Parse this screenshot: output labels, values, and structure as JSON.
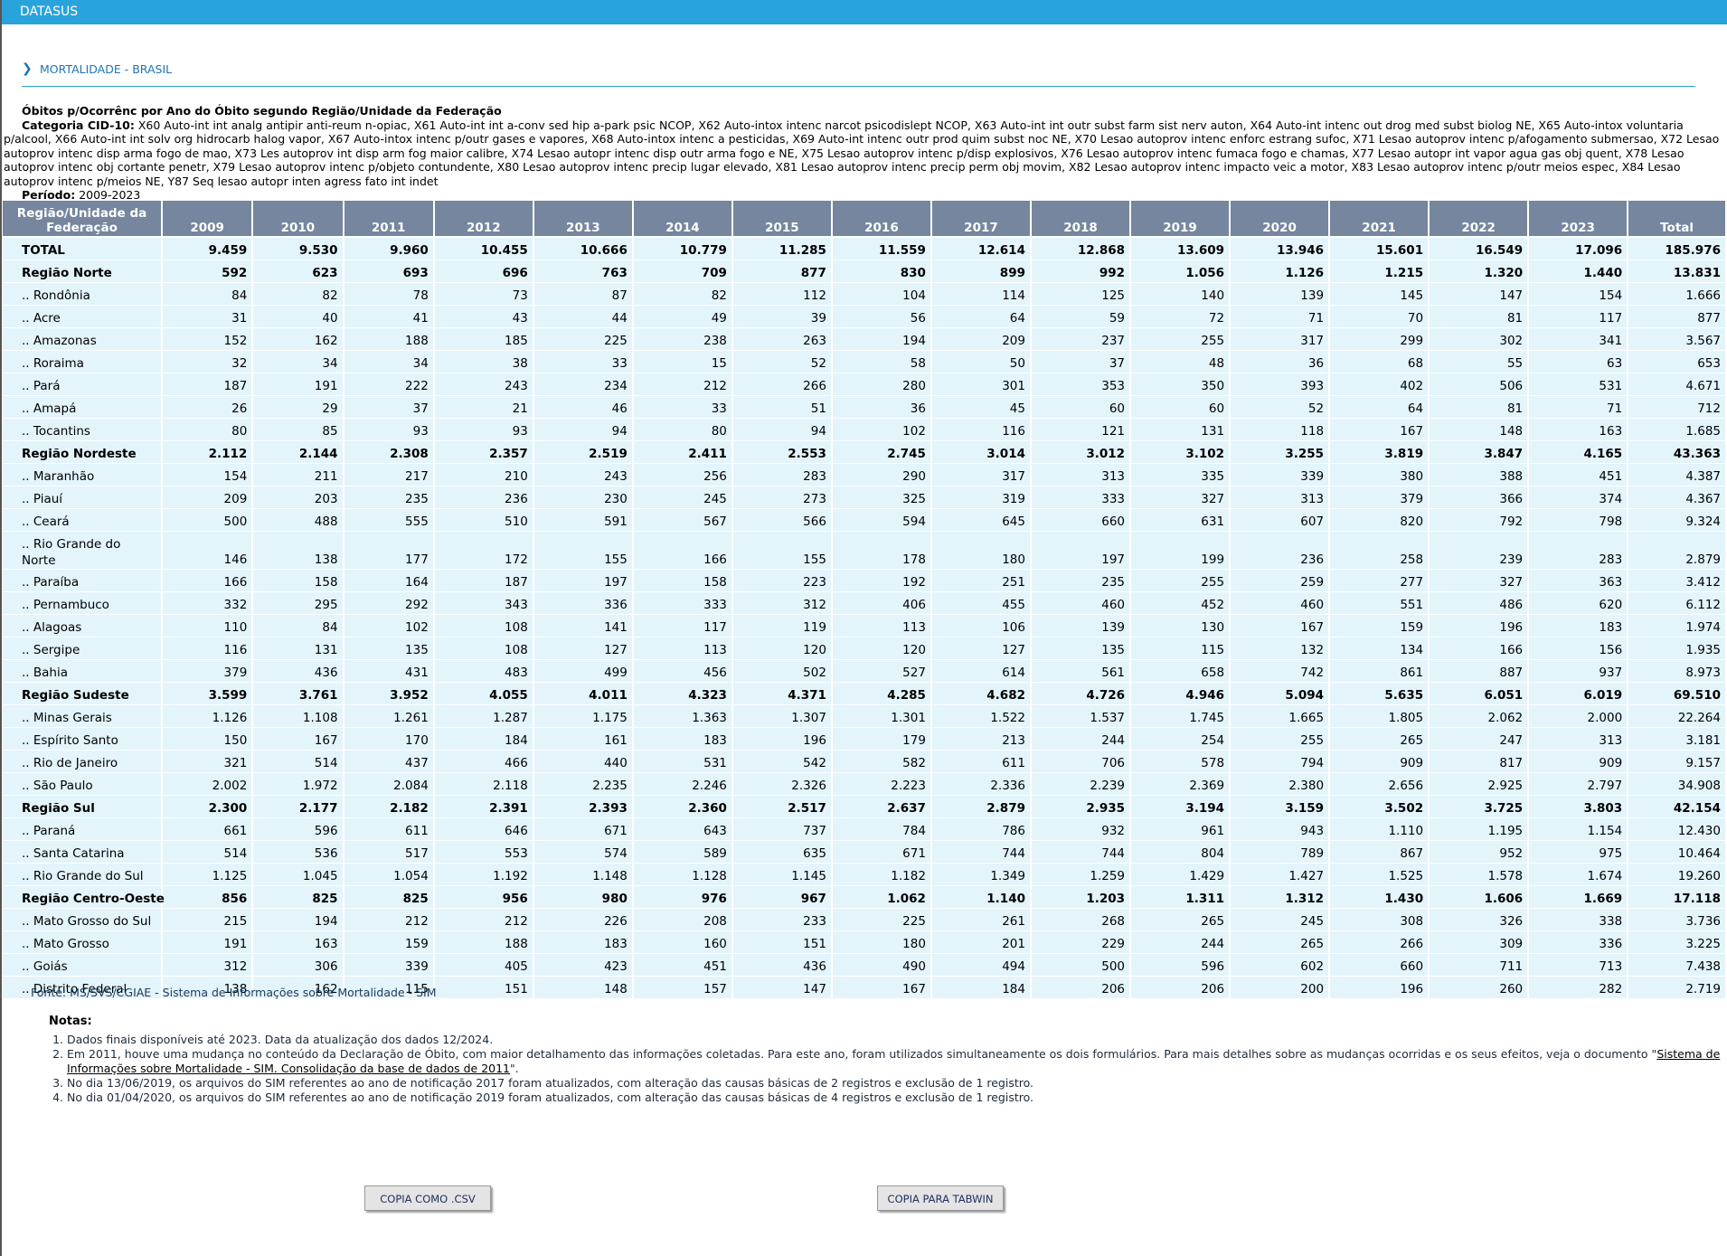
{
  "app": {
    "brand": "DATASUS"
  },
  "section": {
    "title": "MORTALIDADE - BRASIL"
  },
  "header": {
    "title": "Óbitos p/Ocorrênc por Ano do Óbito segundo Região/Unidade da Federação",
    "categoria_label": "Categoria CID-10:",
    "categoria_value": "X60 Auto-int int analg antipir anti-reum n-opiac, X61 Auto-int int a-conv sed hip a-park psic NCOP, X62 Auto-intox intenc narcot psicodislept NCOP, X63 Auto-int int outr subst farm sist nerv auton, X64 Auto-int intenc out drog med subst biolog NE, X65 Auto-intox voluntaria p/alcool, X66 Auto-int int solv org hidrocarb halog vapor, X67 Auto-intox intenc p/outr gases e vapores, X68 Auto-intox intenc a pesticidas, X69 Auto-int intenc outr prod quim subst noc NE, X70 Lesao autoprov intenc enforc estrang sufoc, X71 Lesao autoprov intenc p/afogamento submersao, X72 Lesao autoprov intenc disp arma fogo de mao, X73 Les autoprov int disp arm fog maior calibre, X74 Lesao autopr intenc disp outr arma fogo e NE, X75 Lesao autoprov intenc p/disp explosivos, X76 Lesao autoprov intenc fumaca fogo e chamas, X77 Lesao autopr int vapor agua gas obj quent, X78 Lesao autoprov intenc obj cortante penetr, X79 Lesao autoprov intenc p/objeto contundente, X80 Lesao autoprov intenc precip lugar elevado, X81 Lesao autoprov intenc precip perm obj movim, X82 Lesao autoprov intenc impacto veic a motor, X83 Lesao autoprov intenc p/outr meios espec, X84 Lesao autoprov intenc p/meios NE, Y87 Seq lesao autopr inten agress fato int indet",
    "periodo_label": "Período:",
    "periodo_value": "2009-2023"
  },
  "table": {
    "columns": [
      "Região/Unidade da Federação",
      "2009",
      "2010",
      "2011",
      "2012",
      "2013",
      "2014",
      "2015",
      "2016",
      "2017",
      "2018",
      "2019",
      "2020",
      "2021",
      "2022",
      "2023",
      "Total"
    ],
    "rows": [
      {
        "name": "TOTAL",
        "bold": true,
        "values": [
          "9.459",
          "9.530",
          "9.960",
          "10.455",
          "10.666",
          "10.779",
          "11.285",
          "11.559",
          "12.614",
          "12.868",
          "13.609",
          "13.946",
          "15.601",
          "16.549",
          "17.096",
          "185.976"
        ]
      },
      {
        "name": "Região Norte",
        "bold": true,
        "values": [
          "592",
          "623",
          "693",
          "696",
          "763",
          "709",
          "877",
          "830",
          "899",
          "992",
          "1.056",
          "1.126",
          "1.215",
          "1.320",
          "1.440",
          "13.831"
        ]
      },
      {
        "name": ".. Rondônia",
        "values": [
          "84",
          "82",
          "78",
          "73",
          "87",
          "82",
          "112",
          "104",
          "114",
          "125",
          "140",
          "139",
          "145",
          "147",
          "154",
          "1.666"
        ]
      },
      {
        "name": ".. Acre",
        "values": [
          "31",
          "40",
          "41",
          "43",
          "44",
          "49",
          "39",
          "56",
          "64",
          "59",
          "72",
          "71",
          "70",
          "81",
          "117",
          "877"
        ]
      },
      {
        "name": ".. Amazonas",
        "values": [
          "152",
          "162",
          "188",
          "185",
          "225",
          "238",
          "263",
          "194",
          "209",
          "237",
          "255",
          "317",
          "299",
          "302",
          "341",
          "3.567"
        ]
      },
      {
        "name": ".. Roraima",
        "values": [
          "32",
          "34",
          "34",
          "38",
          "33",
          "15",
          "52",
          "58",
          "50",
          "37",
          "48",
          "36",
          "68",
          "55",
          "63",
          "653"
        ]
      },
      {
        "name": ".. Pará",
        "values": [
          "187",
          "191",
          "222",
          "243",
          "234",
          "212",
          "266",
          "280",
          "301",
          "353",
          "350",
          "393",
          "402",
          "506",
          "531",
          "4.671"
        ]
      },
      {
        "name": ".. Amapá",
        "values": [
          "26",
          "29",
          "37",
          "21",
          "46",
          "33",
          "51",
          "36",
          "45",
          "60",
          "60",
          "52",
          "64",
          "81",
          "71",
          "712"
        ]
      },
      {
        "name": ".. Tocantins",
        "values": [
          "80",
          "85",
          "93",
          "93",
          "94",
          "80",
          "94",
          "102",
          "116",
          "121",
          "131",
          "118",
          "167",
          "148",
          "163",
          "1.685"
        ]
      },
      {
        "name": "Região Nordeste",
        "bold": true,
        "values": [
          "2.112",
          "2.144",
          "2.308",
          "2.357",
          "2.519",
          "2.411",
          "2.553",
          "2.745",
          "3.014",
          "3.012",
          "3.102",
          "3.255",
          "3.819",
          "3.847",
          "4.165",
          "43.363"
        ]
      },
      {
        "name": ".. Maranhão",
        "values": [
          "154",
          "211",
          "217",
          "210",
          "243",
          "256",
          "283",
          "290",
          "317",
          "313",
          "335",
          "339",
          "380",
          "388",
          "451",
          "4.387"
        ]
      },
      {
        "name": ".. Piauí",
        "values": [
          "209",
          "203",
          "235",
          "236",
          "230",
          "245",
          "273",
          "325",
          "319",
          "333",
          "327",
          "313",
          "379",
          "366",
          "374",
          "4.367"
        ]
      },
      {
        "name": ".. Ceará",
        "values": [
          "500",
          "488",
          "555",
          "510",
          "591",
          "567",
          "566",
          "594",
          "645",
          "660",
          "631",
          "607",
          "820",
          "792",
          "798",
          "9.324"
        ]
      },
      {
        "name": ".. Rio Grande do Norte",
        "tall": true,
        "values": [
          "146",
          "138",
          "177",
          "172",
          "155",
          "166",
          "155",
          "178",
          "180",
          "197",
          "199",
          "236",
          "258",
          "239",
          "283",
          "2.879"
        ]
      },
      {
        "name": ".. Paraíba",
        "values": [
          "166",
          "158",
          "164",
          "187",
          "197",
          "158",
          "223",
          "192",
          "251",
          "235",
          "255",
          "259",
          "277",
          "327",
          "363",
          "3.412"
        ]
      },
      {
        "name": ".. Pernambuco",
        "values": [
          "332",
          "295",
          "292",
          "343",
          "336",
          "333",
          "312",
          "406",
          "455",
          "460",
          "452",
          "460",
          "551",
          "486",
          "620",
          "6.112"
        ]
      },
      {
        "name": ".. Alagoas",
        "values": [
          "110",
          "84",
          "102",
          "108",
          "141",
          "117",
          "119",
          "113",
          "106",
          "139",
          "130",
          "167",
          "159",
          "196",
          "183",
          "1.974"
        ]
      },
      {
        "name": ".. Sergipe",
        "values": [
          "116",
          "131",
          "135",
          "108",
          "127",
          "113",
          "120",
          "120",
          "127",
          "135",
          "115",
          "132",
          "134",
          "166",
          "156",
          "1.935"
        ]
      },
      {
        "name": ".. Bahia",
        "values": [
          "379",
          "436",
          "431",
          "483",
          "499",
          "456",
          "502",
          "527",
          "614",
          "561",
          "658",
          "742",
          "861",
          "887",
          "937",
          "8.973"
        ]
      },
      {
        "name": "Região Sudeste",
        "bold": true,
        "values": [
          "3.599",
          "3.761",
          "3.952",
          "4.055",
          "4.011",
          "4.323",
          "4.371",
          "4.285",
          "4.682",
          "4.726",
          "4.946",
          "5.094",
          "5.635",
          "6.051",
          "6.019",
          "69.510"
        ]
      },
      {
        "name": ".. Minas Gerais",
        "values": [
          "1.126",
          "1.108",
          "1.261",
          "1.287",
          "1.175",
          "1.363",
          "1.307",
          "1.301",
          "1.522",
          "1.537",
          "1.745",
          "1.665",
          "1.805",
          "2.062",
          "2.000",
          "22.264"
        ]
      },
      {
        "name": ".. Espírito Santo",
        "values": [
          "150",
          "167",
          "170",
          "184",
          "161",
          "183",
          "196",
          "179",
          "213",
          "244",
          "254",
          "255",
          "265",
          "247",
          "313",
          "3.181"
        ]
      },
      {
        "name": ".. Rio de Janeiro",
        "values": [
          "321",
          "514",
          "437",
          "466",
          "440",
          "531",
          "542",
          "582",
          "611",
          "706",
          "578",
          "794",
          "909",
          "817",
          "909",
          "9.157"
        ]
      },
      {
        "name": ".. São Paulo",
        "values": [
          "2.002",
          "1.972",
          "2.084",
          "2.118",
          "2.235",
          "2.246",
          "2.326",
          "2.223",
          "2.336",
          "2.239",
          "2.369",
          "2.380",
          "2.656",
          "2.925",
          "2.797",
          "34.908"
        ]
      },
      {
        "name": "Região Sul",
        "bold": true,
        "values": [
          "2.300",
          "2.177",
          "2.182",
          "2.391",
          "2.393",
          "2.360",
          "2.517",
          "2.637",
          "2.879",
          "2.935",
          "3.194",
          "3.159",
          "3.502",
          "3.725",
          "3.803",
          "42.154"
        ]
      },
      {
        "name": ".. Paraná",
        "values": [
          "661",
          "596",
          "611",
          "646",
          "671",
          "643",
          "737",
          "784",
          "786",
          "932",
          "961",
          "943",
          "1.110",
          "1.195",
          "1.154",
          "12.430"
        ]
      },
      {
        "name": ".. Santa Catarina",
        "values": [
          "514",
          "536",
          "517",
          "553",
          "574",
          "589",
          "635",
          "671",
          "744",
          "744",
          "804",
          "789",
          "867",
          "952",
          "975",
          "10.464"
        ]
      },
      {
        "name": ".. Rio Grande do Sul",
        "values": [
          "1.125",
          "1.045",
          "1.054",
          "1.192",
          "1.148",
          "1.128",
          "1.145",
          "1.182",
          "1.349",
          "1.259",
          "1.429",
          "1.427",
          "1.525",
          "1.578",
          "1.674",
          "19.260"
        ]
      },
      {
        "name": "Região Centro-Oeste",
        "bold": true,
        "values": [
          "856",
          "825",
          "825",
          "956",
          "980",
          "976",
          "967",
          "1.062",
          "1.140",
          "1.203",
          "1.311",
          "1.312",
          "1.430",
          "1.606",
          "1.669",
          "17.118"
        ]
      },
      {
        "name": ".. Mato Grosso do Sul",
        "values": [
          "215",
          "194",
          "212",
          "212",
          "226",
          "208",
          "233",
          "225",
          "261",
          "268",
          "265",
          "245",
          "308",
          "326",
          "338",
          "3.736"
        ]
      },
      {
        "name": ".. Mato Grosso",
        "values": [
          "191",
          "163",
          "159",
          "188",
          "183",
          "160",
          "151",
          "180",
          "201",
          "229",
          "244",
          "265",
          "266",
          "309",
          "336",
          "3.225"
        ]
      },
      {
        "name": ".. Goiás",
        "values": [
          "312",
          "306",
          "339",
          "405",
          "423",
          "451",
          "436",
          "490",
          "494",
          "500",
          "596",
          "602",
          "660",
          "711",
          "713",
          "7.438"
        ]
      },
      {
        "name": ".. Distrito Federal",
        "values": [
          "138",
          "162",
          "115",
          "151",
          "148",
          "157",
          "147",
          "167",
          "184",
          "206",
          "206",
          "200",
          "196",
          "260",
          "282",
          "2.719"
        ]
      }
    ]
  },
  "fonte": "Fonte: MS/SVS/CGIAE - Sistema de Informações sobre Mortalidade - SIM",
  "notas": {
    "title": "Notas:",
    "items": [
      "Dados finais disponíveis até 2023. Data da atualização dos dados 12/2024.",
      "Em 2011, houve uma mudança no conteúdo da Declaração de Óbito, com maior detalhamento das informações coletadas. Para este ano, foram utilizados simultaneamente os dois formulários. Para mais detalhes sobre as mudanças ocorridas e os seus efeitos, veja o documento \"",
      "No dia 13/06/2019, os arquivos do SIM referentes ao ano de notificação 2017 foram atualizados, com alteração das causas básicas de 2 registros e exclusão de 1 registro.",
      "No dia 01/04/2020, os arquivos do SIM referentes ao ano de notificação 2019 foram atualizados, com alteração das causas básicas de 4 registros e exclusão de 1 registro."
    ],
    "link_text": "Sistema de Informações sobre Mortalidade - SIM. Consolidação da base de dados de 2011",
    "link_suffix": "\"."
  },
  "buttons": {
    "csv": "COPIA COMO .CSV",
    "tabwin": "COPIA PARA TABWIN"
  }
}
